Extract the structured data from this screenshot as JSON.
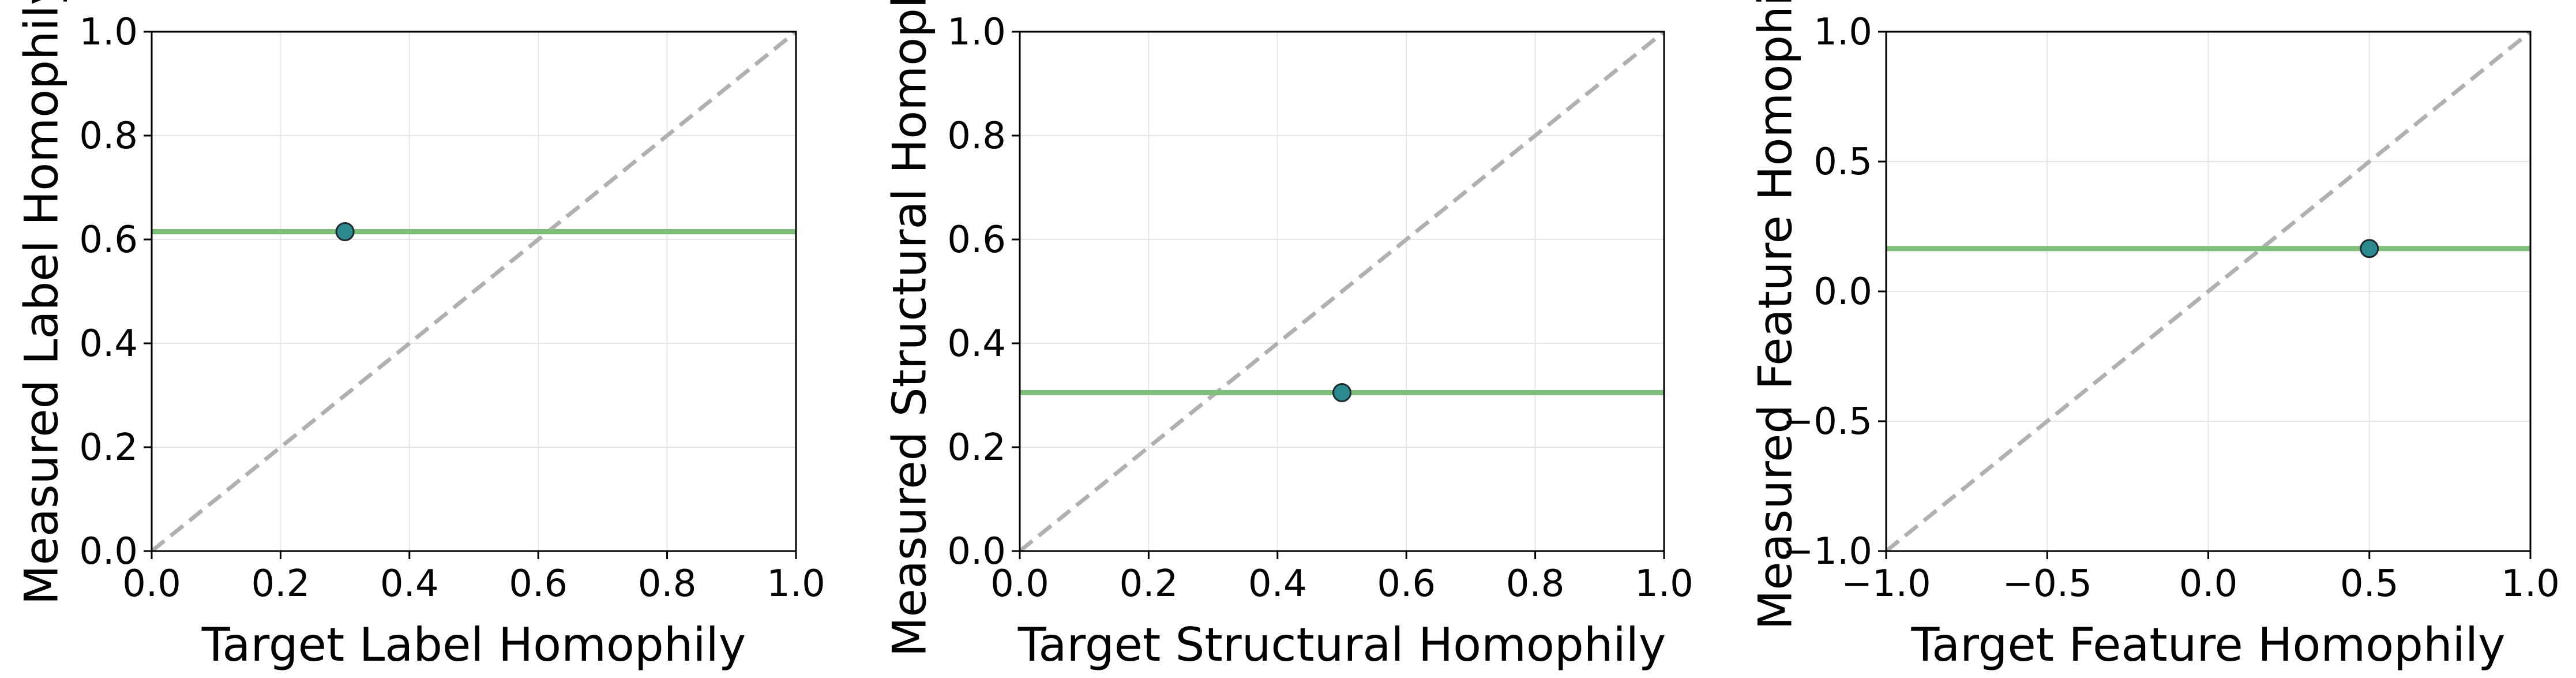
{
  "chart_data": [
    {
      "type": "scatter",
      "title": "",
      "xlabel": "Target Label Homophily",
      "ylabel": "Measured Label Homophily",
      "xlim": [
        0.0,
        1.0
      ],
      "ylim": [
        0.0,
        1.0
      ],
      "xticks": [
        0.0,
        0.2,
        0.4,
        0.6,
        0.8,
        1.0
      ],
      "yticks": [
        0.0,
        0.2,
        0.4,
        0.6,
        0.8,
        1.0
      ],
      "xtick_labels": [
        "0.0",
        "0.2",
        "0.4",
        "0.6",
        "0.8",
        "1.0"
      ],
      "ytick_labels": [
        "0.0",
        "0.2",
        "0.4",
        "0.6",
        "0.8",
        "1.0"
      ],
      "points": [
        {
          "x": 0.3,
          "y": 0.615
        }
      ],
      "hline_y": 0.615,
      "diagonal": true,
      "grid": true
    },
    {
      "type": "scatter",
      "title": "",
      "xlabel": "Target Structural Homophily",
      "ylabel": "Measured Structural Homophily",
      "xlim": [
        0.0,
        1.0
      ],
      "ylim": [
        0.0,
        1.0
      ],
      "xticks": [
        0.0,
        0.2,
        0.4,
        0.6,
        0.8,
        1.0
      ],
      "yticks": [
        0.0,
        0.2,
        0.4,
        0.6,
        0.8,
        1.0
      ],
      "xtick_labels": [
        "0.0",
        "0.2",
        "0.4",
        "0.6",
        "0.8",
        "1.0"
      ],
      "ytick_labels": [
        "0.0",
        "0.2",
        "0.4",
        "0.6",
        "0.8",
        "1.0"
      ],
      "points": [
        {
          "x": 0.5,
          "y": 0.305
        }
      ],
      "hline_y": 0.305,
      "diagonal": true,
      "grid": true
    },
    {
      "type": "scatter",
      "title": "",
      "xlabel": "Target Feature Homophily",
      "ylabel": "Measured Feature Homophily",
      "xlim": [
        -1.0,
        1.0
      ],
      "ylim": [
        -1.0,
        1.0
      ],
      "xticks": [
        -1.0,
        -0.5,
        0.0,
        0.5,
        1.0
      ],
      "yticks": [
        -1.0,
        -0.5,
        0.0,
        0.5,
        1.0
      ],
      "xtick_labels": [
        "−1.0",
        "−0.5",
        "0.0",
        "0.5",
        "1.0"
      ],
      "ytick_labels": [
        "−1.0",
        "−0.5",
        "0.0",
        "0.5",
        "1.0"
      ],
      "points": [
        {
          "x": 0.5,
          "y": 0.165
        }
      ],
      "hline_y": 0.165,
      "diagonal": true,
      "grid": true
    }
  ],
  "colors": {
    "point_fill": "#2b8a8f",
    "point_edge": "#1f2a30",
    "hline": "#7fbf7b",
    "diagonal": "#b0b0b0",
    "grid": "#e6e6e6",
    "axes": "#000000"
  }
}
